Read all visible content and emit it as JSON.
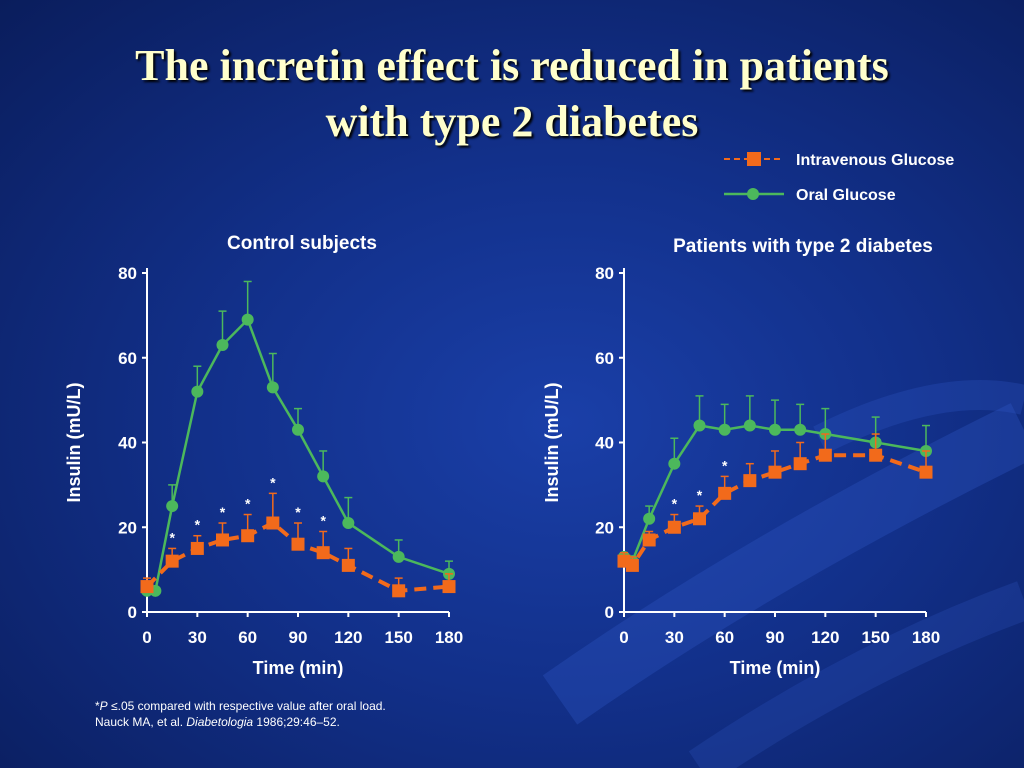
{
  "slide": {
    "title_line1": "The incretin effect is reduced in patients",
    "title_line2": "with type 2 diabetes",
    "footnote_star": "*",
    "footnote_p": "P",
    "footnote_rest": " ≤.05 compared with respective value after oral load.",
    "citation_authors": "Nauck MA, et al. ",
    "citation_journal": "Diabetologia",
    "citation_rest": " 1986;29:46–52."
  },
  "colors": {
    "oral": "#4cb85c",
    "iv": "#f26a1b",
    "axis": "#ffffff",
    "title": "#ffffcc"
  },
  "legend": {
    "items": [
      {
        "label": "Intravenous Glucose",
        "series": "iv"
      },
      {
        "label": "Oral Glucose",
        "series": "oral"
      }
    ]
  },
  "chart_data": [
    {
      "type": "line",
      "title": "Control subjects",
      "xlabel": "Time (min)",
      "ylabel": "Insulin (mU/L)",
      "xlim": [
        0,
        180
      ],
      "ylim": [
        0,
        80
      ],
      "xticks": [
        0,
        30,
        60,
        90,
        120,
        150,
        180
      ],
      "yticks": [
        0,
        20,
        40,
        60,
        80
      ],
      "series": [
        {
          "name": "Oral Glucose",
          "key": "oral",
          "style": "solid",
          "marker": "circle",
          "x": [
            0,
            5,
            15,
            30,
            45,
            60,
            75,
            90,
            105,
            120,
            150,
            180
          ],
          "y": [
            5,
            5,
            25,
            52,
            63,
            69,
            53,
            43,
            32,
            21,
            13,
            9
          ],
          "err": [
            0,
            0,
            5,
            6,
            8,
            9,
            8,
            5,
            6,
            6,
            4,
            3
          ]
        },
        {
          "name": "Intravenous Glucose",
          "key": "iv",
          "style": "dashed",
          "marker": "square",
          "x": [
            0,
            15,
            30,
            45,
            60,
            75,
            90,
            105,
            120,
            150,
            180
          ],
          "y": [
            6,
            12,
            15,
            17,
            18,
            21,
            16,
            14,
            11,
            5,
            6
          ],
          "err": [
            2,
            3,
            3,
            4,
            5,
            7,
            5,
            5,
            4,
            3,
            3
          ]
        }
      ],
      "significance": {
        "marker": "*",
        "x": [
          15,
          30,
          45,
          60,
          75,
          90,
          105
        ]
      }
    },
    {
      "type": "line",
      "title": "Patients with type 2 diabetes",
      "xlabel": "Time (min)",
      "ylabel": "Insulin (mU/L)",
      "xlim": [
        0,
        180
      ],
      "ylim": [
        0,
        80
      ],
      "xticks": [
        0,
        30,
        60,
        90,
        120,
        150,
        180
      ],
      "yticks": [
        0,
        20,
        40,
        60,
        80
      ],
      "series": [
        {
          "name": "Oral Glucose",
          "key": "oral",
          "style": "solid",
          "marker": "circle",
          "x": [
            0,
            5,
            15,
            30,
            45,
            60,
            75,
            90,
            105,
            120,
            150,
            180
          ],
          "y": [
            13,
            12,
            22,
            35,
            44,
            43,
            44,
            43,
            43,
            42,
            40,
            38
          ],
          "err": [
            0,
            0,
            3,
            6,
            7,
            6,
            7,
            7,
            6,
            6,
            6,
            6
          ]
        },
        {
          "name": "Intravenous Glucose",
          "key": "iv",
          "style": "dashed",
          "marker": "square",
          "x": [
            0,
            5,
            15,
            30,
            45,
            60,
            75,
            90,
            105,
            120,
            150,
            180
          ],
          "y": [
            12,
            11,
            17,
            20,
            22,
            28,
            31,
            33,
            35,
            37,
            37,
            33
          ],
          "err": [
            2,
            2,
            2,
            3,
            3,
            4,
            4,
            5,
            5,
            5,
            5,
            5
          ]
        }
      ],
      "significance": {
        "marker": "*",
        "x": [
          30,
          45,
          60
        ]
      }
    }
  ]
}
